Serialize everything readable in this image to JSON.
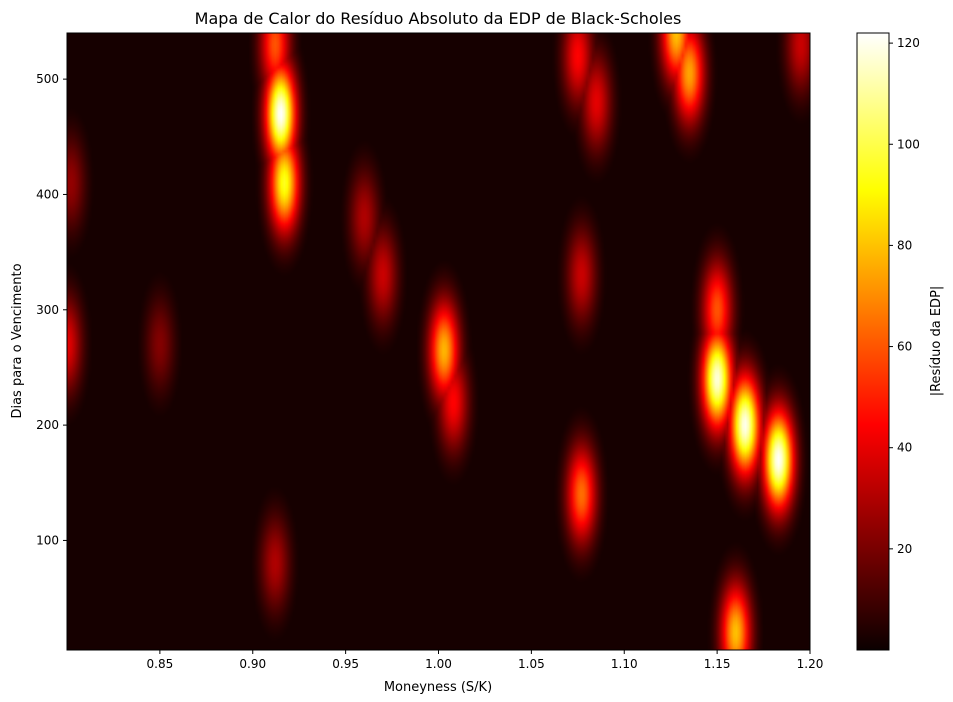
{
  "chart_data": {
    "type": "heatmap",
    "title": "Mapa de Calor do Resíduo Absoluto da EDP de Black-Scholes",
    "xlabel": "Moneyness (S/K)",
    "ylabel": "Dias para o Vencimento",
    "xlim": [
      0.8,
      1.2
    ],
    "ylim": [
      5,
      540
    ],
    "xticks": [
      0.85,
      0.9,
      0.95,
      1.0,
      1.05,
      1.1,
      1.15,
      1.2
    ],
    "xtick_labels": [
      "0.85",
      "0.90",
      "0.95",
      "1.00",
      "1.05",
      "1.10",
      "1.15",
      "1.20"
    ],
    "yticks": [
      100,
      200,
      300,
      400,
      500
    ],
    "ytick_labels": [
      "100",
      "200",
      "300",
      "400",
      "500"
    ],
    "colormap": "hot",
    "colorbar": {
      "label": "|Resíduo da EDP|",
      "range": [
        0,
        122
      ],
      "ticks": [
        20,
        40,
        60,
        80,
        100,
        120
      ],
      "tick_labels": [
        "20",
        "40",
        "60",
        "80",
        "100",
        "120"
      ]
    },
    "background_value": 2,
    "hotspots": [
      {
        "x": 0.915,
        "y": 470,
        "value": 122
      },
      {
        "x": 0.917,
        "y": 410,
        "value": 95
      },
      {
        "x": 0.912,
        "y": 530,
        "value": 60
      },
      {
        "x": 0.912,
        "y": 80,
        "value": 30
      },
      {
        "x": 0.97,
        "y": 330,
        "value": 35
      },
      {
        "x": 0.96,
        "y": 380,
        "value": 30
      },
      {
        "x": 1.003,
        "y": 265,
        "value": 78
      },
      {
        "x": 1.008,
        "y": 220,
        "value": 45
      },
      {
        "x": 0.8,
        "y": 270,
        "value": 40
      },
      {
        "x": 0.802,
        "y": 410,
        "value": 25
      },
      {
        "x": 0.85,
        "y": 270,
        "value": 22
      },
      {
        "x": 1.077,
        "y": 140,
        "value": 65
      },
      {
        "x": 1.077,
        "y": 330,
        "value": 35
      },
      {
        "x": 1.075,
        "y": 520,
        "value": 45
      },
      {
        "x": 1.085,
        "y": 480,
        "value": 40
      },
      {
        "x": 1.128,
        "y": 540,
        "value": 80
      },
      {
        "x": 1.135,
        "y": 505,
        "value": 75
      },
      {
        "x": 1.15,
        "y": 240,
        "value": 118
      },
      {
        "x": 1.15,
        "y": 300,
        "value": 60
      },
      {
        "x": 1.165,
        "y": 200,
        "value": 120
      },
      {
        "x": 1.183,
        "y": 170,
        "value": 122
      },
      {
        "x": 1.16,
        "y": 20,
        "value": 80
      },
      {
        "x": 1.195,
        "y": 530,
        "value": 35
      }
    ]
  }
}
